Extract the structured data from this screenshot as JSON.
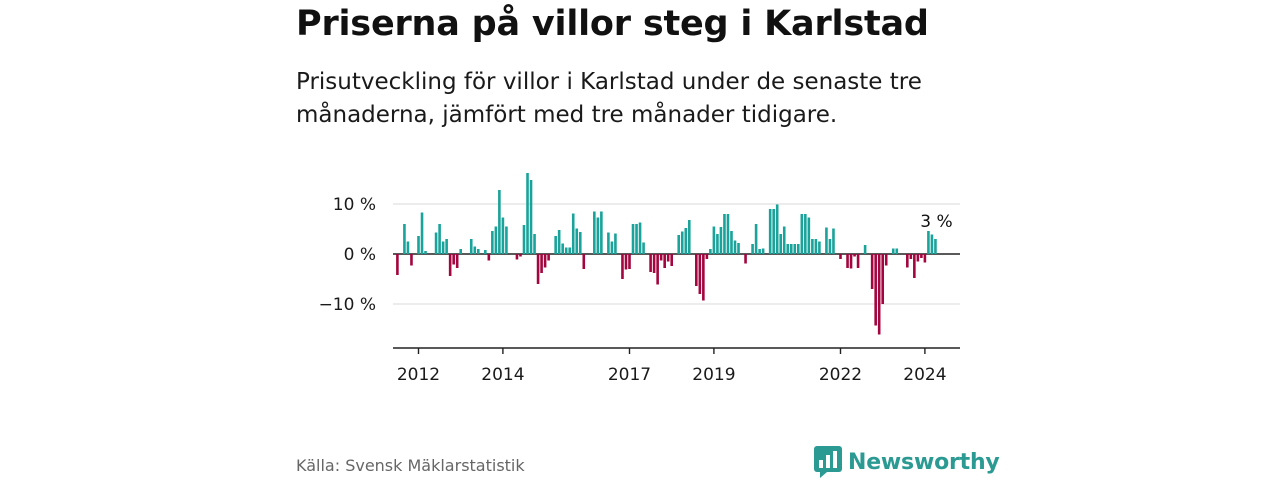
{
  "title": "Priserna på villor steg i Karlstad",
  "subtitle": "Prisutveckling för villor i Karlstad under de senaste tre månaderna, jämfört med tre månader tidigare.",
  "source": "Källa: Svensk Mäklarstatistik",
  "brand": {
    "name": "Newsworthy",
    "icon": "newsworthy-logo-icon"
  },
  "colors": {
    "positive": "#1aa39a",
    "negative": "#a3063e",
    "grid": "#d9d9d9",
    "axis": "#222222",
    "brand": "#2a9a93"
  },
  "chart_data": {
    "type": "bar",
    "title": "",
    "xlabel": "",
    "ylabel": "",
    "ylim": [
      -18,
      16
    ],
    "y_ticks": [
      {
        "value": 10,
        "label": "10 %"
      },
      {
        "value": 0,
        "label": "0 %"
      },
      {
        "value": -10,
        "label": "−10 %"
      }
    ],
    "x_ticks": [
      {
        "value": 2012.0,
        "label": "2012"
      },
      {
        "value": 2014.0,
        "label": "2014"
      },
      {
        "value": 2017.0,
        "label": "2017"
      },
      {
        "value": 2019.0,
        "label": "2019"
      },
      {
        "value": 2022.0,
        "label": "2022"
      },
      {
        "value": 2024.0,
        "label": "2024"
      }
    ],
    "x_start": 2011.5,
    "period": "month",
    "annotation": {
      "label": "3 %",
      "value": 3
    },
    "values": [
      -4.2,
      0,
      6,
      2.5,
      -2.3,
      0,
      3.6,
      8.3,
      0.6,
      0,
      0,
      4.3,
      6,
      2.5,
      3,
      -4.4,
      -2.1,
      -2.8,
      1,
      0,
      0,
      3,
      1.5,
      1,
      0,
      0.8,
      -1.3,
      4.6,
      5.5,
      12.8,
      7.3,
      5.5,
      0,
      0,
      -1.1,
      -0.5,
      5.8,
      16.2,
      14.8,
      4,
      -6,
      -3.8,
      -2.7,
      -1.3,
      0,
      3.6,
      4.8,
      2.1,
      1.3,
      1.3,
      8.1,
      5.1,
      4.4,
      -3,
      0,
      0,
      8.5,
      7.3,
      8.5,
      0,
      4.3,
      2.5,
      4.1,
      0,
      -5,
      -3.1,
      -3,
      6,
      6,
      6.3,
      2.3,
      0,
      -3.6,
      -3.8,
      -6.1,
      -1.3,
      -2.8,
      -1.5,
      -2.4,
      0,
      3.8,
      4.5,
      5.2,
      6.8,
      0,
      -6.4,
      -8,
      -9.3,
      -1,
      1,
      5.5,
      4,
      5.4,
      8,
      8,
      4.6,
      2.7,
      2.2,
      0,
      -1.9,
      0,
      2,
      6,
      1,
      1.1,
      0,
      9,
      9,
      9.9,
      4,
      5.5,
      2,
      2,
      2,
      2,
      8,
      8,
      7.3,
      3,
      3,
      2.5,
      0,
      5.3,
      3,
      5.1,
      0,
      -1,
      0,
      -2.8,
      -2.9,
      -0.5,
      -2.8,
      0,
      1.8,
      0,
      -7,
      -14.3,
      -16.1,
      -10,
      -2.3,
      0,
      1.1,
      1.1,
      0,
      0,
      -2.7,
      -1,
      -4.8,
      -1.5,
      -0.8,
      -1.7,
      4.6,
      3.9,
      3
    ]
  }
}
